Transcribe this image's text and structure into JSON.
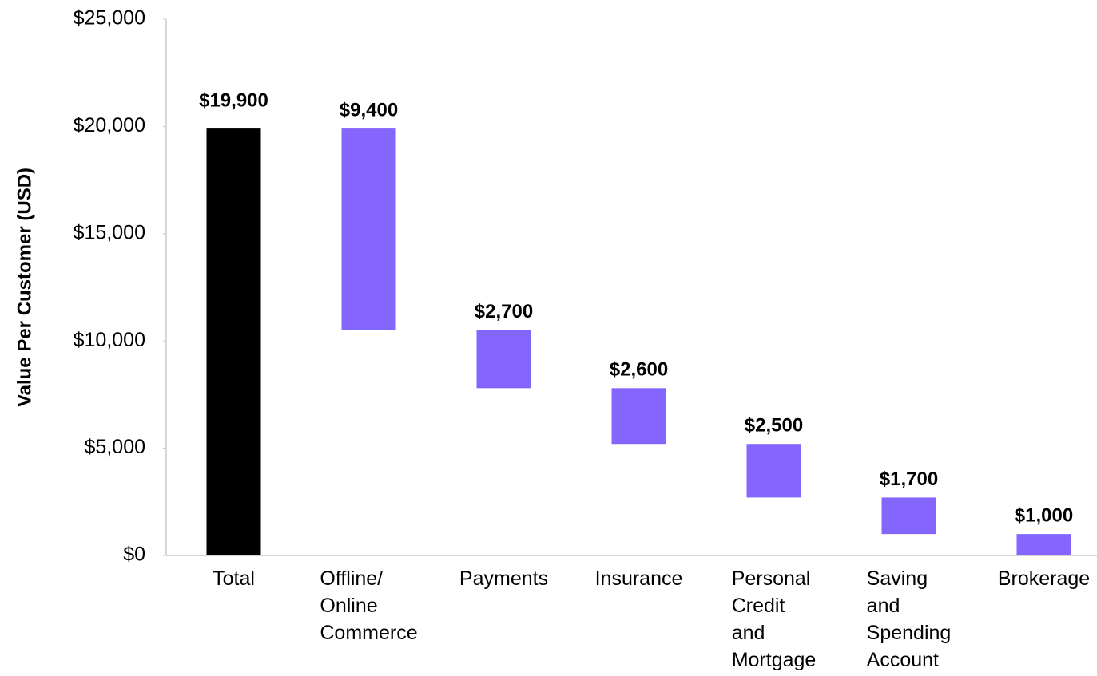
{
  "chart_data": {
    "type": "waterfall",
    "ylabel": "Value Per Customer (USD)",
    "categories": [
      "Total",
      "Offline/ Online Commerce",
      "Payments",
      "Insurance",
      "Personal Credit and Mortgage",
      "Saving and Spending Account",
      "Brokerage"
    ],
    "values": [
      19900,
      9400,
      2700,
      2600,
      2500,
      1700,
      1000
    ],
    "value_labels": [
      "$19,900",
      "$9,400",
      "$2,700",
      "$2,600",
      "$2,500",
      "$1,700",
      "$1,000"
    ],
    "colors": [
      "#000000",
      "#8466ff",
      "#8466ff",
      "#8466ff",
      "#8466ff",
      "#8466ff",
      "#8466ff"
    ],
    "ylim": [
      0,
      25000
    ],
    "yticks": [
      {
        "value": 0,
        "label": "$0"
      },
      {
        "value": 5000,
        "label": "$5,000"
      },
      {
        "value": 10000,
        "label": "$10,000"
      },
      {
        "value": 15000,
        "label": "$15,000"
      },
      {
        "value": 20000,
        "label": "$20,000"
      },
      {
        "value": 25000,
        "label": "$25,000"
      }
    ],
    "grid": false
  }
}
